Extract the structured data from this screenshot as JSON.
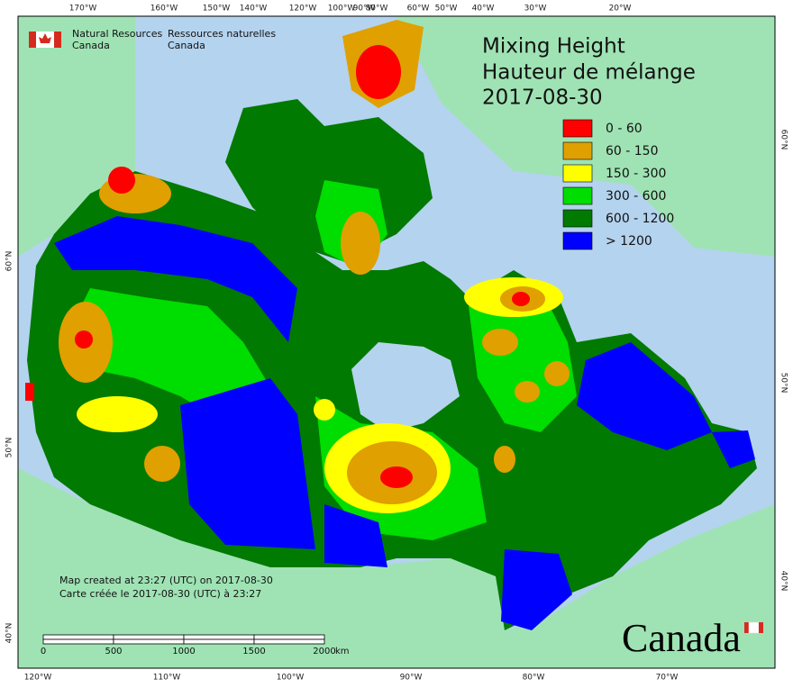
{
  "agency": {
    "en_line1": "Natural Resources",
    "en_line2": "Canada",
    "fr_line1": "Ressources naturelles",
    "fr_line2": "Canada"
  },
  "title": {
    "line1": "Mixing Height",
    "line2": "Hauteur de mélange",
    "date": "2017-08-30"
  },
  "legend": [
    {
      "label": "0 - 60",
      "color": "#ff0000"
    },
    {
      "label": "60 - 150",
      "color": "#e0a000"
    },
    {
      "label": "150 - 300",
      "color": "#ffff00"
    },
    {
      "label": "300 - 600",
      "color": "#00dd00"
    },
    {
      "label": "600 - 1200",
      "color": "#007a00"
    },
    {
      "label": "> 1200",
      "color": "#0000ff"
    }
  ],
  "graticule": {
    "top": [
      "170°W",
      "160°W",
      "150°W",
      "140°W",
      "120°W",
      "100°W",
      "90°W",
      "80°W",
      "60°W",
      "50°W",
      "40°W",
      "30°W",
      "20°W"
    ],
    "bottom": [
      "120°W",
      "110°W",
      "100°W",
      "90°W",
      "80°W",
      "70°W"
    ],
    "left": [
      "60°N",
      "50°N",
      "40°N"
    ],
    "right": [
      "60°N",
      "50°N",
      "40°N"
    ]
  },
  "credits": {
    "en": "Map created at 23:27 (UTC) on 2017-08-30",
    "fr": "Carte créée le 2017-08-30 (UTC) à 23:27"
  },
  "scale_bar": {
    "labels": [
      "0",
      "500",
      "1000",
      "1500",
      "2000"
    ],
    "unit": "km"
  },
  "wordmark": "Canada"
}
